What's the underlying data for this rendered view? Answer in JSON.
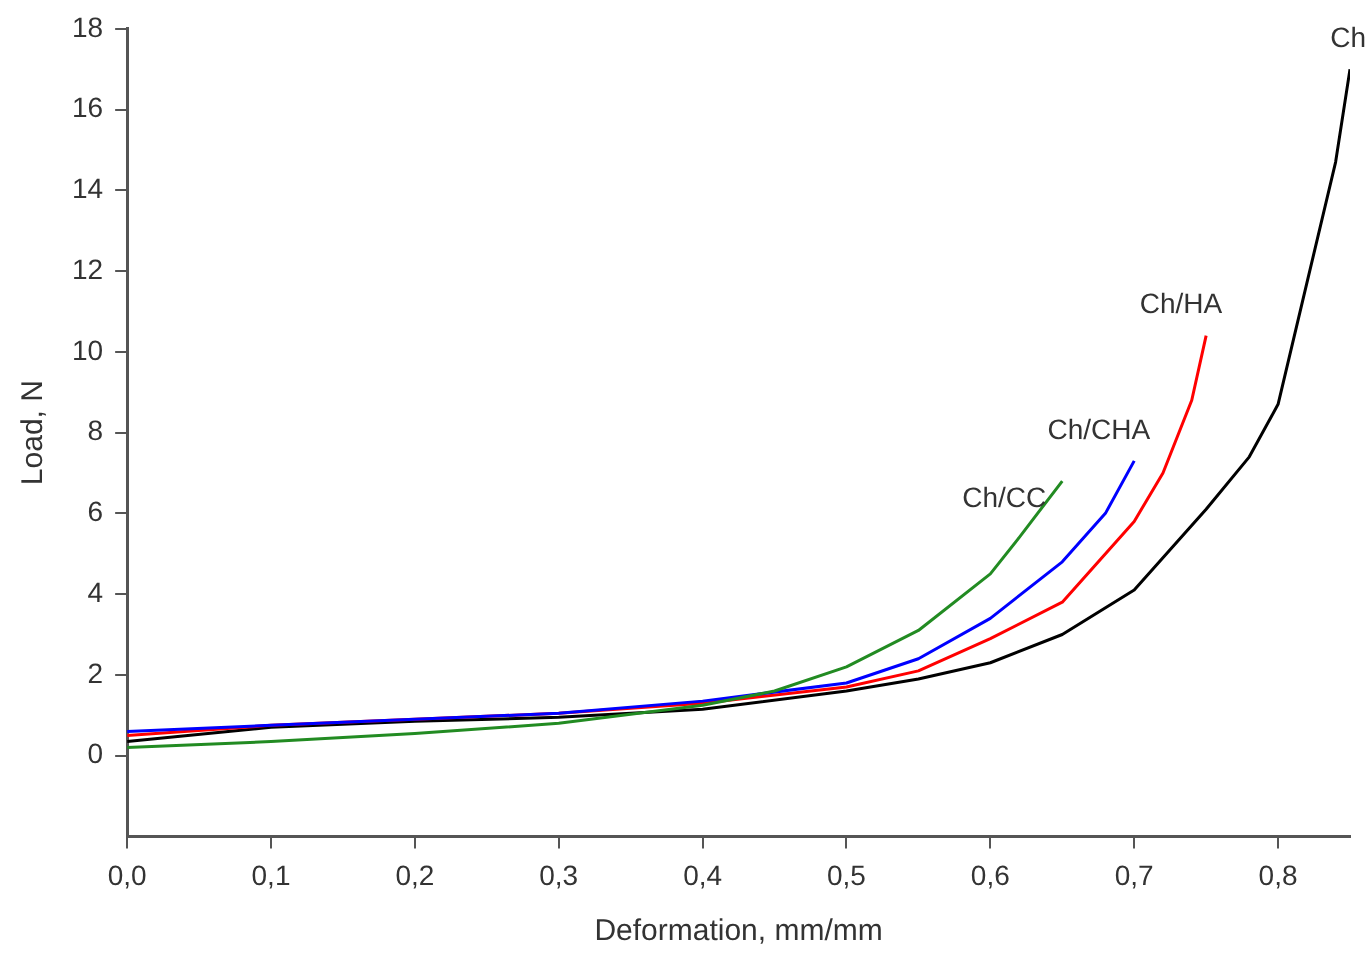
{
  "chart_data": {
    "type": "line",
    "xlabel": "Deformation, mm/mm",
    "ylabel": "Load, N",
    "xlim": [
      0,
      0.85
    ],
    "ylim": [
      -2,
      18
    ],
    "xticks": [
      {
        "value": 0,
        "label": "0,0"
      },
      {
        "value": 0.1,
        "label": "0,1"
      },
      {
        "value": 0.2,
        "label": "0,2"
      },
      {
        "value": 0.3,
        "label": "0,3"
      },
      {
        "value": 0.4,
        "label": "0,4"
      },
      {
        "value": 0.5,
        "label": "0,5"
      },
      {
        "value": 0.6,
        "label": "0,6"
      },
      {
        "value": 0.7,
        "label": "0,7"
      },
      {
        "value": 0.8,
        "label": "0,8"
      }
    ],
    "yticks": [
      0,
      2,
      4,
      6,
      8,
      10,
      12,
      14,
      16,
      18
    ],
    "grid": false,
    "legend": false,
    "marker": "none",
    "line_style": "solid",
    "series": [
      {
        "name": "Ch",
        "color": "#000000",
        "x": [
          0,
          0.1,
          0.2,
          0.3,
          0.4,
          0.5,
          0.55,
          0.6,
          0.65,
          0.7,
          0.75,
          0.78,
          0.8,
          0.82,
          0.84,
          0.85
        ],
        "values": [
          0.35,
          0.7,
          0.85,
          0.95,
          1.15,
          1.6,
          1.9,
          2.3,
          3.0,
          4.1,
          6.1,
          7.4,
          8.7,
          11.7,
          14.7,
          17.0
        ]
      },
      {
        "name": "Ch/HA",
        "color": "#ff0000",
        "x": [
          0,
          0.1,
          0.2,
          0.3,
          0.4,
          0.5,
          0.55,
          0.6,
          0.65,
          0.7,
          0.72,
          0.74,
          0.75
        ],
        "values": [
          0.5,
          0.75,
          0.9,
          1.05,
          1.3,
          1.7,
          2.1,
          2.9,
          3.8,
          5.8,
          7.0,
          8.8,
          10.4
        ]
      },
      {
        "name": "Ch/CHA",
        "color": "#0000ff",
        "x": [
          0,
          0.1,
          0.2,
          0.3,
          0.4,
          0.5,
          0.55,
          0.6,
          0.65,
          0.68,
          0.7
        ],
        "values": [
          0.6,
          0.75,
          0.9,
          1.05,
          1.35,
          1.8,
          2.4,
          3.4,
          4.8,
          6.0,
          7.3
        ]
      },
      {
        "name": "Ch/CC",
        "color": "#228b22",
        "x": [
          0,
          0.1,
          0.2,
          0.3,
          0.4,
          0.45,
          0.5,
          0.55,
          0.6,
          0.62,
          0.65
        ],
        "values": [
          0.2,
          0.35,
          0.55,
          0.8,
          1.25,
          1.6,
          2.2,
          3.1,
          4.5,
          5.4,
          6.8
        ]
      }
    ]
  }
}
